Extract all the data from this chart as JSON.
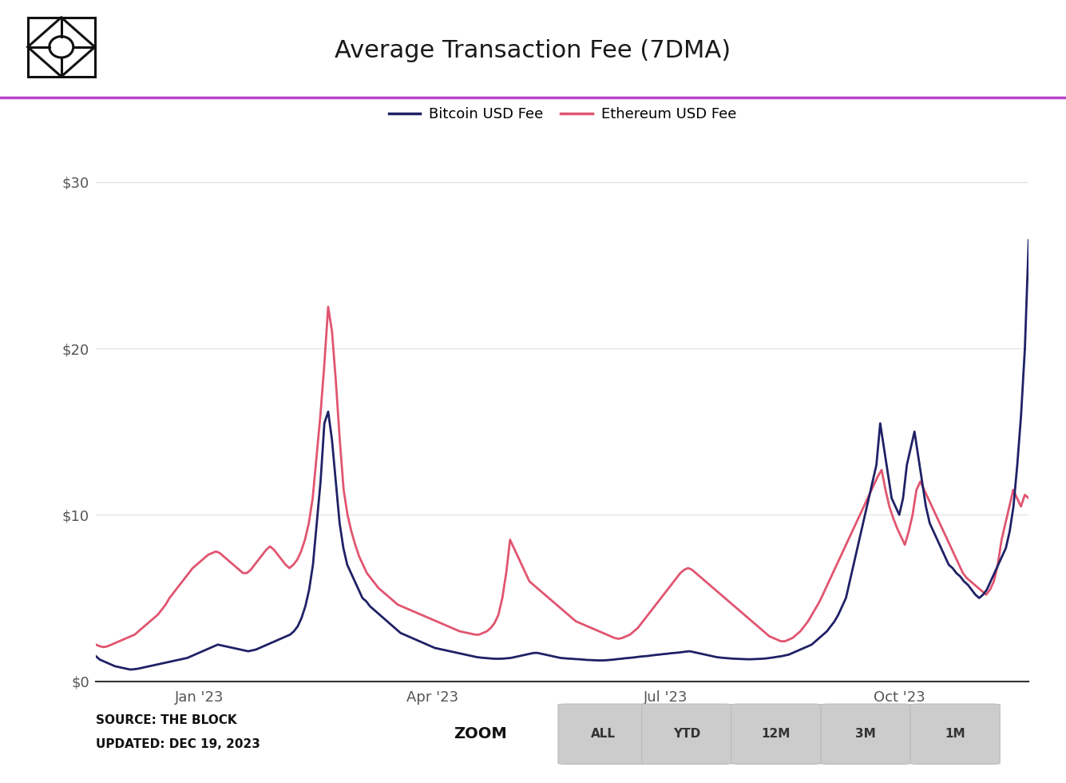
{
  "title": "Average Transaction Fee (7DMA)",
  "btc_color": "#1f2166",
  "eth_color": "#e05570",
  "background_color": "#ffffff",
  "legend_btc": "Bitcoin USD Fee",
  "legend_eth": "Ethereum USD Fee",
  "source_line1": "SOURCE: THE BLOCK",
  "source_line2": "UPDATED: DEC 19, 2023",
  "zoom_label": "ZOOM",
  "zoom_buttons": [
    "ALL",
    "YTD",
    "12M",
    "3M",
    "1M"
  ],
  "header_line_color": "#bb44cc",
  "ytick_labels": [
    "$0",
    "$10",
    "$20",
    "$30"
  ],
  "ytick_values": [
    0,
    10,
    20,
    30
  ],
  "ylim": [
    0,
    32
  ],
  "xtick_labels": [
    "Jan '23",
    "Apr '23",
    "Jul '23",
    "Oct '23"
  ],
  "xtick_positions": [
    0.111,
    0.361,
    0.611,
    0.861
  ],
  "btc_data": [
    1.5,
    1.3,
    1.2,
    1.1,
    1.0,
    0.9,
    0.85,
    0.8,
    0.75,
    0.7,
    0.72,
    0.75,
    0.8,
    0.85,
    0.9,
    0.95,
    1.0,
    1.05,
    1.1,
    1.15,
    1.2,
    1.25,
    1.3,
    1.35,
    1.4,
    1.5,
    1.6,
    1.7,
    1.8,
    1.9,
    2.0,
    2.1,
    2.2,
    2.15,
    2.1,
    2.05,
    2.0,
    1.95,
    1.9,
    1.85,
    1.8,
    1.85,
    1.9,
    2.0,
    2.1,
    2.2,
    2.3,
    2.4,
    2.5,
    2.6,
    2.7,
    2.8,
    3.0,
    3.3,
    3.8,
    4.5,
    5.5,
    7.0,
    9.5,
    12.0,
    15.5,
    16.2,
    14.5,
    12.0,
    9.5,
    8.0,
    7.0,
    6.5,
    6.0,
    5.5,
    5.0,
    4.8,
    4.5,
    4.3,
    4.1,
    3.9,
    3.7,
    3.5,
    3.3,
    3.1,
    2.9,
    2.8,
    2.7,
    2.6,
    2.5,
    2.4,
    2.3,
    2.2,
    2.1,
    2.0,
    1.95,
    1.9,
    1.85,
    1.8,
    1.75,
    1.7,
    1.65,
    1.6,
    1.55,
    1.5,
    1.45,
    1.42,
    1.4,
    1.38,
    1.36,
    1.35,
    1.35,
    1.36,
    1.38,
    1.4,
    1.45,
    1.5,
    1.55,
    1.6,
    1.65,
    1.7,
    1.7,
    1.65,
    1.6,
    1.55,
    1.5,
    1.45,
    1.4,
    1.38,
    1.36,
    1.35,
    1.33,
    1.32,
    1.3,
    1.28,
    1.27,
    1.26,
    1.25,
    1.25,
    1.26,
    1.28,
    1.3,
    1.33,
    1.35,
    1.38,
    1.4,
    1.42,
    1.45,
    1.48,
    1.5,
    1.52,
    1.55,
    1.58,
    1.6,
    1.63,
    1.65,
    1.68,
    1.7,
    1.72,
    1.75,
    1.78,
    1.8,
    1.75,
    1.7,
    1.65,
    1.6,
    1.55,
    1.5,
    1.45,
    1.42,
    1.4,
    1.38,
    1.36,
    1.35,
    1.34,
    1.33,
    1.32,
    1.32,
    1.33,
    1.34,
    1.35,
    1.37,
    1.4,
    1.43,
    1.47,
    1.5,
    1.55,
    1.6,
    1.7,
    1.8,
    1.9,
    2.0,
    2.1,
    2.2,
    2.4,
    2.6,
    2.8,
    3.0,
    3.3,
    3.6,
    4.0,
    4.5,
    5.0,
    6.0,
    7.0,
    8.0,
    9.0,
    10.0,
    11.0,
    12.0,
    13.0,
    15.5,
    14.0,
    12.5,
    11.0,
    10.5,
    10.0,
    11.0,
    13.0,
    14.0,
    15.0,
    13.5,
    12.0,
    10.5,
    9.5,
    9.0,
    8.5,
    8.0,
    7.5,
    7.0,
    6.8,
    6.5,
    6.3,
    6.0,
    5.8,
    5.5,
    5.2,
    5.0,
    5.2,
    5.5,
    6.0,
    6.5,
    7.0,
    7.5,
    8.0,
    9.0,
    10.5,
    13.0,
    16.0,
    20.0,
    26.5
  ],
  "eth_data": [
    2.2,
    2.1,
    2.05,
    2.1,
    2.2,
    2.3,
    2.4,
    2.5,
    2.6,
    2.7,
    2.8,
    3.0,
    3.2,
    3.4,
    3.6,
    3.8,
    4.0,
    4.3,
    4.6,
    5.0,
    5.3,
    5.6,
    5.9,
    6.2,
    6.5,
    6.8,
    7.0,
    7.2,
    7.4,
    7.6,
    7.7,
    7.8,
    7.7,
    7.5,
    7.3,
    7.1,
    6.9,
    6.7,
    6.5,
    6.5,
    6.7,
    7.0,
    7.3,
    7.6,
    7.9,
    8.1,
    7.9,
    7.6,
    7.3,
    7.0,
    6.8,
    7.0,
    7.3,
    7.8,
    8.5,
    9.5,
    11.0,
    13.5,
    16.0,
    19.0,
    22.5,
    21.0,
    18.0,
    14.5,
    11.5,
    10.0,
    9.0,
    8.2,
    7.5,
    7.0,
    6.5,
    6.2,
    5.9,
    5.6,
    5.4,
    5.2,
    5.0,
    4.8,
    4.6,
    4.5,
    4.4,
    4.3,
    4.2,
    4.1,
    4.0,
    3.9,
    3.8,
    3.7,
    3.6,
    3.5,
    3.4,
    3.3,
    3.2,
    3.1,
    3.0,
    2.95,
    2.9,
    2.85,
    2.8,
    2.8,
    2.9,
    3.0,
    3.2,
    3.5,
    4.0,
    5.0,
    6.5,
    8.5,
    8.0,
    7.5,
    7.0,
    6.5,
    6.0,
    5.8,
    5.6,
    5.4,
    5.2,
    5.0,
    4.8,
    4.6,
    4.4,
    4.2,
    4.0,
    3.8,
    3.6,
    3.5,
    3.4,
    3.3,
    3.2,
    3.1,
    3.0,
    2.9,
    2.8,
    2.7,
    2.6,
    2.55,
    2.6,
    2.7,
    2.8,
    3.0,
    3.2,
    3.5,
    3.8,
    4.1,
    4.4,
    4.7,
    5.0,
    5.3,
    5.6,
    5.9,
    6.2,
    6.5,
    6.7,
    6.8,
    6.7,
    6.5,
    6.3,
    6.1,
    5.9,
    5.7,
    5.5,
    5.3,
    5.1,
    4.9,
    4.7,
    4.5,
    4.3,
    4.1,
    3.9,
    3.7,
    3.5,
    3.3,
    3.1,
    2.9,
    2.7,
    2.6,
    2.5,
    2.4,
    2.4,
    2.5,
    2.6,
    2.8,
    3.0,
    3.3,
    3.6,
    4.0,
    4.4,
    4.8,
    5.3,
    5.8,
    6.3,
    6.8,
    7.3,
    7.8,
    8.3,
    8.8,
    9.3,
    9.8,
    10.3,
    10.8,
    11.3,
    11.8,
    12.3,
    12.7,
    11.5,
    10.5,
    9.8,
    9.2,
    8.7,
    8.2,
    9.0,
    10.0,
    11.5,
    12.0,
    11.5,
    11.0,
    10.5,
    10.0,
    9.5,
    9.0,
    8.5,
    8.0,
    7.5,
    7.0,
    6.5,
    6.2,
    6.0,
    5.8,
    5.6,
    5.4,
    5.2,
    5.5,
    6.0,
    7.0,
    8.5,
    9.5,
    10.5,
    11.5,
    11.0,
    10.5,
    11.2,
    11.0
  ]
}
